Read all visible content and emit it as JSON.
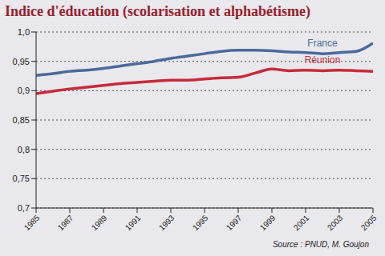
{
  "chart_data": {
    "type": "line",
    "title": "Indice d'éducation (scolarisation et alphabétisme)",
    "source": "Source : PNUD, M. Goujon",
    "x": [
      1985,
      1986,
      1987,
      1988,
      1989,
      1990,
      1991,
      1992,
      1993,
      1994,
      1995,
      1996,
      1997,
      1998,
      1999,
      2000,
      2001,
      2002,
      2003,
      2004,
      2005
    ],
    "series": [
      {
        "name": "France",
        "color": "#4a6a9a",
        "values": [
          0.926,
          0.929,
          0.933,
          0.935,
          0.938,
          0.942,
          0.946,
          0.95,
          0.955,
          0.959,
          0.963,
          0.967,
          0.969,
          0.969,
          0.968,
          0.966,
          0.965,
          0.963,
          0.965,
          0.967,
          0.981
        ]
      },
      {
        "name": "Réunion",
        "color": "#c62b3b",
        "values": [
          0.895,
          0.899,
          0.903,
          0.906,
          0.909,
          0.912,
          0.914,
          0.916,
          0.918,
          0.918,
          0.92,
          0.922,
          0.923,
          0.93,
          0.937,
          0.934,
          0.935,
          0.934,
          0.935,
          0.934,
          0.933
        ]
      }
    ],
    "xlim": [
      1985,
      2005
    ],
    "xticks": [
      1985,
      1987,
      1989,
      1991,
      1993,
      1995,
      1997,
      1999,
      2001,
      2003,
      2005
    ],
    "ylim": [
      0.7,
      1.0
    ],
    "yticks": [
      {
        "value": 0.7,
        "label": "0,7"
      },
      {
        "value": 0.75,
        "label": "0,75"
      },
      {
        "value": 0.8,
        "label": "0,8"
      },
      {
        "value": 0.85,
        "label": "0,85"
      },
      {
        "value": 0.9,
        "label": "0,9"
      },
      {
        "value": 0.95,
        "label": "0,95"
      },
      {
        "value": 1.0,
        "label": "1,0"
      }
    ],
    "grid": true
  }
}
